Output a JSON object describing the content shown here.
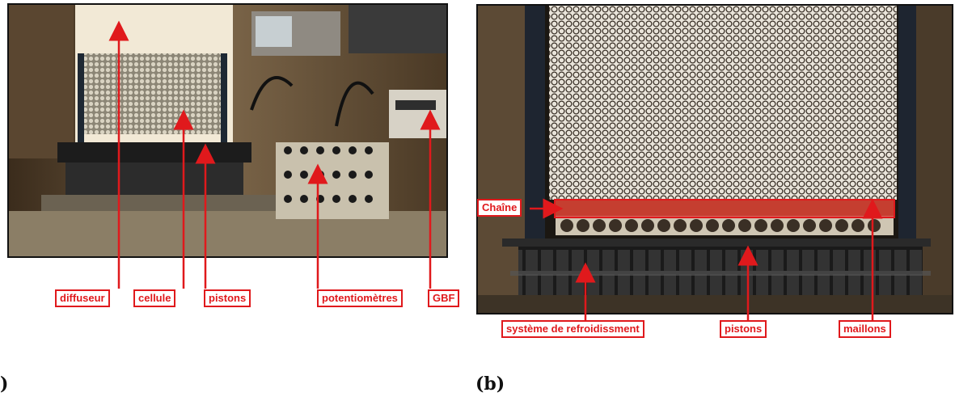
{
  "panel_a": {
    "caption": ")",
    "labels": {
      "diffuseur": "diffuseur",
      "cellule": "cellule",
      "pistons": "pistons",
      "potentiometres": "potentiomètres",
      "gbf": "GBF"
    }
  },
  "panel_b": {
    "caption": "(b)",
    "labels": {
      "chaine": "Chaîne",
      "refroidissement": "système de refroidissment",
      "pistons": "pistons",
      "maillons": "maillons"
    }
  },
  "colors": {
    "annotation": "#e0191c",
    "frame": "#111111"
  }
}
